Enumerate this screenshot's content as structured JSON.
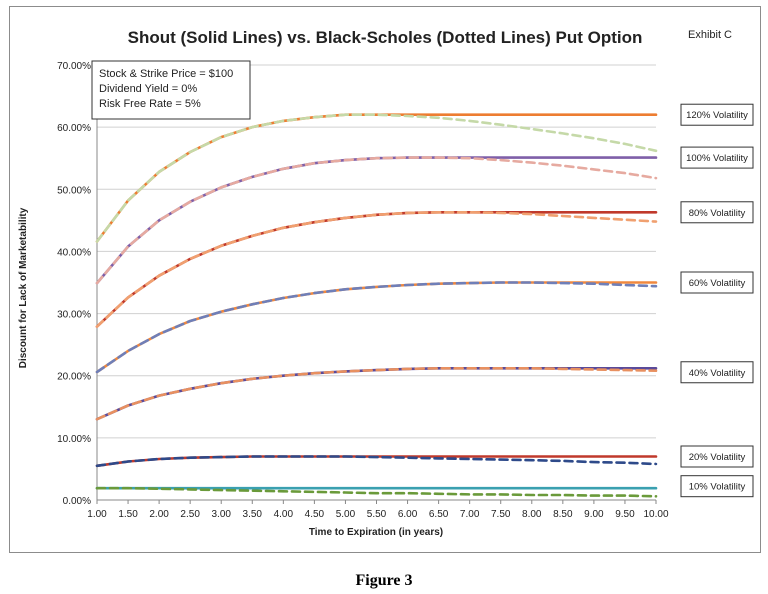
{
  "exhibit": "Exhibit C",
  "caption": "Figure 3",
  "chart_data": {
    "type": "line",
    "title": "Shout (Solid Lines) vs. Black-Scholes (Dotted Lines) Put Option",
    "xlabel": "Time to Expiration (in years)",
    "ylabel": "Discount for Lack of Marketability",
    "ylim": [
      0,
      70
    ],
    "grid": true,
    "x": [
      1.0,
      1.5,
      2.0,
      2.5,
      3.0,
      3.5,
      4.0,
      4.5,
      5.0,
      5.5,
      6.0,
      6.5,
      7.0,
      7.5,
      8.0,
      8.5,
      9.0,
      9.5,
      10.0
    ],
    "x_tick_labels": [
      "1.00",
      "1.50",
      "2.00",
      "2.50",
      "3.00",
      "3.50",
      "4.00",
      "4.50",
      "5.00",
      "5.50",
      "6.00",
      "6.50",
      "7.00",
      "7.50",
      "8.00",
      "8.50",
      "9.00",
      "9.50",
      "10.00"
    ],
    "y_ticks": [
      0,
      10,
      20,
      30,
      40,
      50,
      60,
      70
    ],
    "y_tick_labels": [
      "0.00%",
      "10.00%",
      "20.00%",
      "30.00%",
      "40.00%",
      "50.00%",
      "60.00%",
      "70.00%"
    ],
    "annotation_box": [
      "Stock & Strike Price = $100",
      "Dividend Yield = 0%",
      "Risk Free Rate = 5%"
    ],
    "volatility_labels": [
      "120% Volatility",
      "100% Volatility",
      "80% Volatility",
      "60% Volatility",
      "40% Volatility",
      "20% Volatility",
      "10% Volatility"
    ],
    "series": [
      {
        "group": 0,
        "style": "solid",
        "color": "#ed7d31",
        "values": [
          41.6,
          48.2,
          52.8,
          56.0,
          58.4,
          60.0,
          61.0,
          61.6,
          62.0,
          62.0,
          62.0,
          62.0,
          62.0,
          62.0,
          62.0,
          62.0,
          62.0,
          62.0,
          62.0
        ]
      },
      {
        "group": 0,
        "style": "dashed",
        "color": "#c5d9a8",
        "values": [
          41.6,
          48.2,
          52.8,
          56.0,
          58.4,
          60.0,
          61.0,
          61.6,
          62.0,
          62.0,
          61.8,
          61.5,
          61.0,
          60.4,
          59.7,
          59.0,
          58.2,
          57.3,
          56.2
        ]
      },
      {
        "group": 1,
        "style": "solid",
        "color": "#7f5fa8",
        "values": [
          34.9,
          40.8,
          45.0,
          48.0,
          50.3,
          52.0,
          53.3,
          54.2,
          54.7,
          55.0,
          55.1,
          55.1,
          55.1,
          55.1,
          55.1,
          55.1,
          55.1,
          55.1,
          55.1
        ]
      },
      {
        "group": 1,
        "style": "dashed",
        "color": "#e6aaa0",
        "values": [
          34.9,
          40.8,
          45.0,
          48.0,
          50.3,
          52.0,
          53.3,
          54.2,
          54.7,
          55.0,
          55.1,
          55.1,
          55.0,
          54.7,
          54.3,
          53.8,
          53.2,
          52.6,
          51.8
        ]
      },
      {
        "group": 2,
        "style": "solid",
        "color": "#c0392b",
        "values": [
          27.9,
          32.6,
          36.1,
          38.8,
          40.9,
          42.5,
          43.8,
          44.7,
          45.4,
          45.9,
          46.2,
          46.3,
          46.3,
          46.3,
          46.3,
          46.3,
          46.3,
          46.3,
          46.3
        ]
      },
      {
        "group": 2,
        "style": "dashed",
        "color": "#f0a070",
        "values": [
          27.9,
          32.6,
          36.1,
          38.8,
          40.9,
          42.5,
          43.8,
          44.7,
          45.4,
          45.9,
          46.2,
          46.3,
          46.3,
          46.2,
          46.0,
          45.7,
          45.4,
          45.1,
          44.8
        ]
      },
      {
        "group": 3,
        "style": "solid",
        "color": "#f0883e",
        "values": [
          20.6,
          24.0,
          26.7,
          28.8,
          30.3,
          31.5,
          32.5,
          33.3,
          33.9,
          34.3,
          34.6,
          34.8,
          34.9,
          35.0,
          35.0,
          35.0,
          35.0,
          35.0,
          35.0
        ]
      },
      {
        "group": 3,
        "style": "dashed",
        "color": "#6f7fb8",
        "values": [
          20.6,
          24.0,
          26.7,
          28.8,
          30.3,
          31.5,
          32.5,
          33.3,
          33.9,
          34.3,
          34.6,
          34.8,
          34.9,
          35.0,
          35.0,
          34.9,
          34.8,
          34.6,
          34.4
        ]
      },
      {
        "group": 4,
        "style": "solid",
        "color": "#5a4a9a",
        "values": [
          13.0,
          15.2,
          16.8,
          17.9,
          18.8,
          19.5,
          20.0,
          20.4,
          20.7,
          20.9,
          21.1,
          21.2,
          21.2,
          21.2,
          21.2,
          21.2,
          21.2,
          21.2,
          21.2
        ]
      },
      {
        "group": 4,
        "style": "dashed",
        "color": "#e89060",
        "values": [
          13.0,
          15.2,
          16.8,
          17.9,
          18.8,
          19.5,
          20.0,
          20.4,
          20.7,
          20.9,
          21.1,
          21.2,
          21.2,
          21.2,
          21.2,
          21.1,
          21.0,
          20.9,
          20.8
        ]
      },
      {
        "group": 5,
        "style": "solid",
        "color": "#c0392b",
        "values": [
          5.5,
          6.2,
          6.6,
          6.8,
          6.9,
          7.0,
          7.0,
          7.0,
          7.0,
          7.0,
          7.0,
          7.0,
          7.0,
          7.0,
          7.0,
          7.0,
          7.0,
          7.0,
          7.0
        ]
      },
      {
        "group": 5,
        "style": "dashed",
        "color": "#2e4a8a",
        "values": [
          5.5,
          6.2,
          6.6,
          6.8,
          6.9,
          7.0,
          7.0,
          7.0,
          7.0,
          6.9,
          6.8,
          6.7,
          6.6,
          6.5,
          6.4,
          6.3,
          6.1,
          6.0,
          5.8
        ]
      },
      {
        "group": 6,
        "style": "solid",
        "color": "#3aa0b0",
        "values": [
          1.9,
          1.9,
          1.9,
          1.9,
          1.9,
          1.9,
          1.9,
          1.9,
          1.9,
          1.9,
          1.9,
          1.9,
          1.9,
          1.9,
          1.9,
          1.9,
          1.9,
          1.9,
          1.9
        ]
      },
      {
        "group": 6,
        "style": "dashed",
        "color": "#6a9a3a",
        "values": [
          1.9,
          1.9,
          1.8,
          1.7,
          1.6,
          1.5,
          1.4,
          1.3,
          1.2,
          1.1,
          1.1,
          1.0,
          0.9,
          0.9,
          0.8,
          0.8,
          0.7,
          0.7,
          0.6
        ]
      }
    ]
  }
}
